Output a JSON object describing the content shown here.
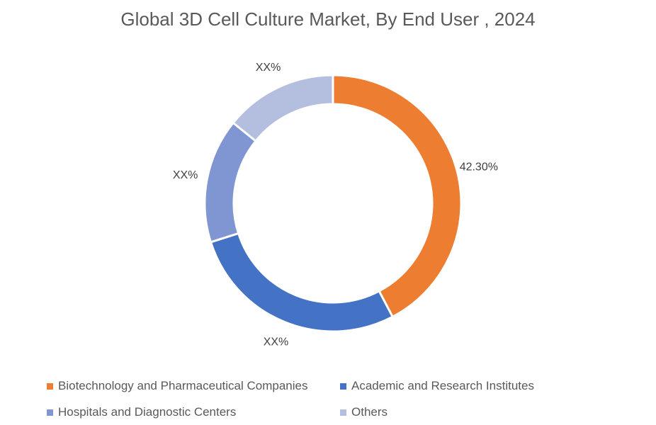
{
  "chart_data": {
    "type": "pie",
    "variant": "donut",
    "title": "Global 3D Cell Culture Market, By End User , 2024",
    "legend_position": "bottom",
    "slices": [
      {
        "name": "Biotechnology and Pharmaceutical Companies",
        "value": 42.3,
        "label": "42.30%",
        "color": "#ED7D31"
      },
      {
        "name": "Academic and Research Institutes",
        "value": 27.8,
        "label": "XX%",
        "color": "#4472C4"
      },
      {
        "name": "Hospitals and Diagnostic Centers",
        "value": 15.7,
        "label": "XX%",
        "color": "#7F96D2"
      },
      {
        "name": "Others",
        "value": 14.2,
        "label": "XX%",
        "color": "#B4BFE0"
      }
    ]
  }
}
